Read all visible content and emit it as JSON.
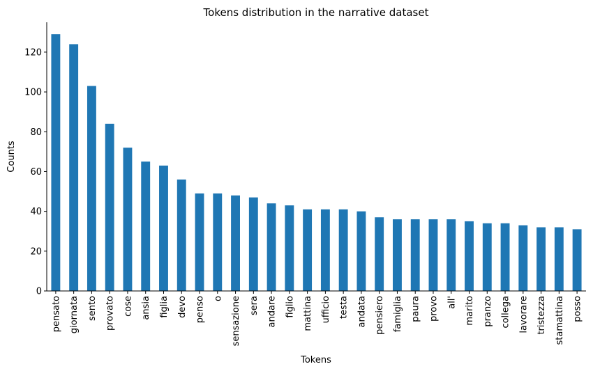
{
  "chart_data": {
    "type": "bar",
    "title": "Tokens distribution in the narrative dataset",
    "xlabel": "Tokens",
    "ylabel": "Counts",
    "ylim": [
      0,
      135
    ],
    "yticks": [
      0,
      20,
      40,
      60,
      80,
      100,
      120
    ],
    "grid": false,
    "bar_color": "#1f77b4",
    "categories": [
      "pensato",
      "giornata",
      "sento",
      "provato",
      "cose",
      "ansia",
      "figlia",
      "devo",
      "penso",
      "o",
      "sensazione",
      "sera",
      "andare",
      "figlio",
      "mattina",
      "ufficio",
      "testa",
      "andata",
      "pensiero",
      "famiglia",
      "paura",
      "provo",
      "all'",
      "marito",
      "pranzo",
      "collega",
      "lavorare",
      "tristezza",
      "stamattina",
      "posso"
    ],
    "values": [
      129,
      124,
      103,
      84,
      72,
      65,
      63,
      56,
      49,
      49,
      48,
      47,
      44,
      43,
      41,
      41,
      41,
      40,
      37,
      36,
      36,
      36,
      36,
      35,
      34,
      34,
      33,
      32,
      32,
      31
    ]
  }
}
